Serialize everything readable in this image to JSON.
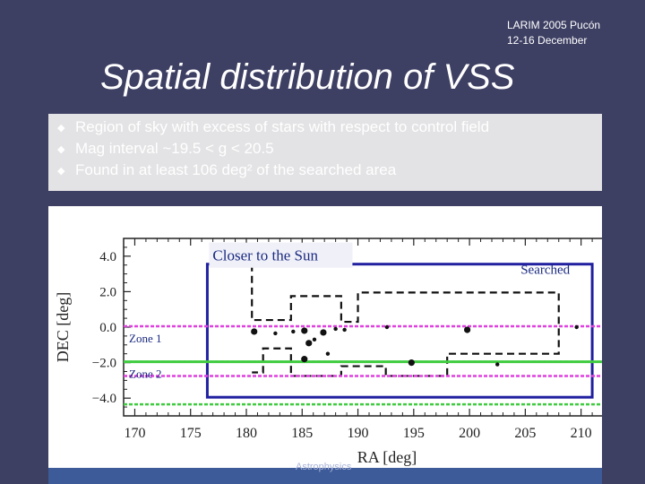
{
  "header": {
    "conference_line1": "LARIM 2005 Pucón",
    "conference_line2": "12-16 December"
  },
  "title": "Spatial distribution of VSS",
  "bullets": [
    "Region of sky with excess of stars with respect to control field",
    "Mag interval ~19.5 < g < 20.5",
    "Found in at least 106 deg² of the searched area"
  ],
  "footer_text": "Astrophysics",
  "colors": {
    "background": "#3d3f63",
    "zone1": "#e040e0",
    "zone2": "#40cc40",
    "searched_box": "#2020a0"
  },
  "chart_data": {
    "type": "scatter",
    "xlabel": "RA [deg]",
    "ylabel": "DEC [deg]",
    "xlim": [
      169,
      213
    ],
    "ylim": [
      -5.0,
      5.0
    ],
    "xticks": [
      "170",
      "175",
      "180",
      "185",
      "190",
      "195",
      "200",
      "205",
      "210"
    ],
    "yticks": [
      "4.0",
      "2.0",
      "0.0",
      "−2.0",
      "−4.0"
    ],
    "points": [
      {
        "x": 180.7,
        "y": -0.25,
        "r": "medium"
      },
      {
        "x": 182.6,
        "y": -0.35,
        "r": "small"
      },
      {
        "x": 184.2,
        "y": -0.25,
        "r": "small"
      },
      {
        "x": 185.2,
        "y": -0.2,
        "r": "medium"
      },
      {
        "x": 185.6,
        "y": -0.9,
        "r": "medium"
      },
      {
        "x": 186.1,
        "y": -0.7,
        "r": "small"
      },
      {
        "x": 186.9,
        "y": -0.3,
        "r": "medium"
      },
      {
        "x": 188.0,
        "y": -0.1,
        "r": "small"
      },
      {
        "x": 188.8,
        "y": -0.15,
        "r": "small"
      },
      {
        "x": 185.2,
        "y": -1.8,
        "r": "medium"
      },
      {
        "x": 187.3,
        "y": -1.5,
        "r": "small"
      },
      {
        "x": 194.8,
        "y": -2.0,
        "r": "medium"
      },
      {
        "x": 202.5,
        "y": -2.1,
        "r": "small"
      },
      {
        "x": 192.6,
        "y": 0.0,
        "r": "small"
      },
      {
        "x": 199.8,
        "y": -0.15,
        "r": "medium"
      },
      {
        "x": 209.6,
        "y": 0.0,
        "r": "small"
      }
    ],
    "zones": [
      {
        "label": "Zone 1",
        "dec_top": 0.05,
        "dec_bottom": -2.75
      },
      {
        "label": "Zone 2",
        "dec_top": -1.95,
        "dec_bottom": -4.35
      }
    ],
    "searched_label": "Searched",
    "searched_box": {
      "ra_min": 176.5,
      "ra_max": 211.0,
      "dec_min": -3.95,
      "dec_max": 3.55
    },
    "closer_label": "Closer to the Sun",
    "dashed_outline": [
      [
        180.5,
        3.55
      ],
      [
        180.5,
        0.4
      ],
      [
        184.0,
        0.4
      ],
      [
        184.0,
        1.75
      ],
      [
        188.5,
        1.75
      ],
      [
        188.5,
        0.3
      ],
      [
        190.0,
        0.3
      ],
      [
        190.0,
        1.95
      ],
      [
        208.0,
        1.95
      ],
      [
        208.0,
        -1.5
      ],
      [
        198.0,
        -1.5
      ],
      [
        198.0,
        -2.75
      ],
      [
        192.5,
        -2.75
      ],
      [
        192.5,
        -2.2
      ],
      [
        188.5,
        -2.2
      ],
      [
        188.5,
        -2.75
      ],
      [
        184.0,
        -2.75
      ],
      [
        184.0,
        -1.2
      ],
      [
        181.5,
        -1.2
      ],
      [
        181.5,
        -2.55
      ],
      [
        180.5,
        -2.55
      ]
    ]
  }
}
